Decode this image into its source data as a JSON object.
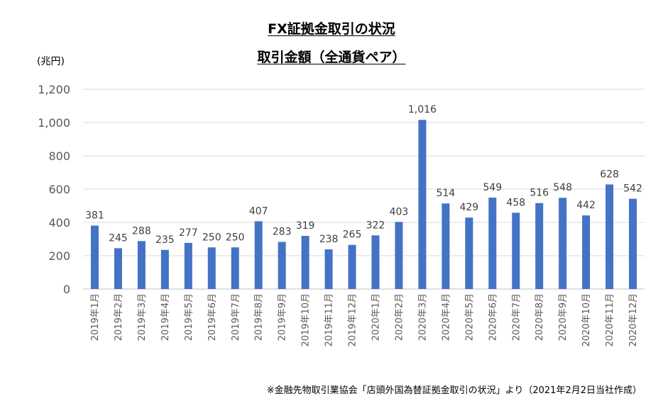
{
  "header": {
    "title": "FX証拠金取引の状況",
    "subtitle": "取引金額（全通貨ペア）",
    "unit": "(兆円)"
  },
  "footer": {
    "source": "※金融先物取引業協会「店頭外国為替証拠金取引の状況」より（2021年2月2日当社作成）"
  },
  "colors": {
    "bar": "#4472C4",
    "grid": "#D9D9D9"
  },
  "chart_data": {
    "type": "bar",
    "title": "FX証拠金取引の状況",
    "subtitle": "取引金額（全通貨ペア）",
    "ylabel": "(兆円)",
    "ylim": [
      0,
      1200
    ],
    "yticks": [
      0,
      200,
      400,
      600,
      800,
      1000,
      1200
    ],
    "ytick_labels": [
      "0",
      "200",
      "400",
      "600",
      "800",
      "1,000",
      "1,200"
    ],
    "grid": true,
    "categories": [
      "2019年1月",
      "2019年2月",
      "2019年3月",
      "2019年4月",
      "2019年5月",
      "2019年6月",
      "2019年7月",
      "2019年8月",
      "2019年9月",
      "2019年10月",
      "2019年11月",
      "2019年12月",
      "2020年1月",
      "2020年2月",
      "2020年3月",
      "2020年4月",
      "2020年5月",
      "2020年6月",
      "2020年7月",
      "2020年8月",
      "2020年9月",
      "2020年10月",
      "2020年11月",
      "2020年12月"
    ],
    "values": [
      381,
      245,
      288,
      235,
      277,
      250,
      250,
      407,
      283,
      319,
      238,
      265,
      322,
      403,
      1016,
      514,
      429,
      549,
      458,
      516,
      548,
      442,
      628,
      542
    ],
    "value_labels": [
      "381",
      "245",
      "288",
      "235",
      "277",
      "250",
      "250",
      "407",
      "283",
      "319",
      "238",
      "265",
      "322",
      "403",
      "1,016",
      "514",
      "429",
      "549",
      "458",
      "516",
      "548",
      "442",
      "628",
      "542"
    ]
  }
}
